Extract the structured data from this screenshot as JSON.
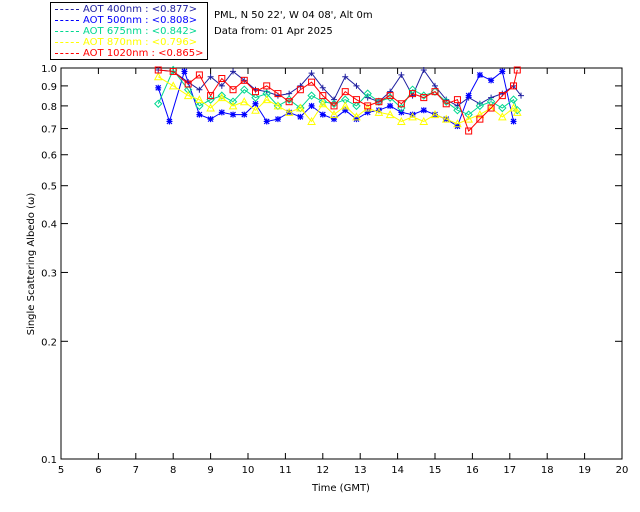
{
  "header": {
    "site_line": "PML, N 50 22', W 04 08', Alt 0m",
    "date_line": "Data from: 01 Apr 2025"
  },
  "legend": [
    {
      "label": "AOT  400nm : <0.877>",
      "color": "#2020a0"
    },
    {
      "label": "AOT  500nm : <0.808>",
      "color": "#0000ff"
    },
    {
      "label": "AOT  675nm : <0.842>",
      "color": "#00d890"
    },
    {
      "label": "AOT  870nm : <0.796>",
      "color": "#ffff00"
    },
    {
      "label": "AOT 1020nm : <0.865>",
      "color": "#ff0000"
    }
  ],
  "chart_data": {
    "type": "line",
    "xlabel": "Time (GMT)",
    "ylabel": "Single Scattering Albedo (ω)",
    "xlim": [
      5,
      20
    ],
    "ylim": [
      0.1,
      1.0
    ],
    "yscale": "log",
    "xticks": [
      5,
      6,
      7,
      8,
      9,
      10,
      11,
      12,
      13,
      14,
      15,
      16,
      17,
      18,
      19,
      20
    ],
    "yticks": [
      0.1,
      0.2,
      0.3,
      0.4,
      0.5,
      0.6,
      0.7,
      0.8,
      0.9,
      1.0
    ],
    "ytick_labels": [
      "0.1",
      "0.2",
      "0.3",
      "0.4",
      "0.5",
      "0.6",
      "0.7",
      "0.8",
      "0.9",
      "1.0"
    ],
    "series": [
      {
        "name": "AOT  400nm : <0.877>",
        "color": "#2020a0",
        "marker": "plus",
        "x": [
          7.6,
          8.0,
          8.4,
          8.7,
          9.0,
          9.3,
          9.6,
          9.9,
          10.2,
          10.5,
          10.8,
          11.1,
          11.4,
          11.7,
          12.0,
          12.3,
          12.6,
          12.9,
          13.2,
          13.5,
          13.8,
          14.1,
          14.4,
          14.7,
          15.0,
          15.3,
          15.6,
          15.9,
          16.2,
          16.5,
          16.8,
          17.1,
          17.3
        ],
        "y": [
          0.99,
          0.98,
          0.92,
          0.88,
          0.95,
          0.9,
          0.98,
          0.93,
          0.88,
          0.87,
          0.85,
          0.86,
          0.9,
          0.97,
          0.89,
          0.83,
          0.95,
          0.9,
          0.84,
          0.82,
          0.87,
          0.96,
          0.85,
          0.99,
          0.9,
          0.83,
          0.8,
          0.84,
          0.81,
          0.84,
          0.86,
          0.9,
          0.85
        ]
      },
      {
        "name": "AOT  500nm : <0.808>",
        "color": "#0000ff",
        "marker": "star",
        "x": [
          7.6,
          7.9,
          8.3,
          8.7,
          9.0,
          9.3,
          9.6,
          9.9,
          10.2,
          10.5,
          10.8,
          11.1,
          11.4,
          11.7,
          12.0,
          12.3,
          12.6,
          12.9,
          13.2,
          13.5,
          13.8,
          14.1,
          14.4,
          14.7,
          15.0,
          15.3,
          15.6,
          15.9,
          16.2,
          16.5,
          16.8,
          17.1
        ],
        "y": [
          0.89,
          0.73,
          0.98,
          0.76,
          0.74,
          0.77,
          0.76,
          0.76,
          0.81,
          0.73,
          0.74,
          0.77,
          0.75,
          0.8,
          0.76,
          0.74,
          0.78,
          0.74,
          0.77,
          0.78,
          0.8,
          0.77,
          0.76,
          0.78,
          0.76,
          0.74,
          0.71,
          0.85,
          0.96,
          0.93,
          0.98,
          0.73
        ]
      },
      {
        "name": "AOT  675nm : <0.842>",
        "color": "#00d890",
        "marker": "diamond",
        "x": [
          7.6,
          8.0,
          8.4,
          8.7,
          9.0,
          9.3,
          9.6,
          9.9,
          10.2,
          10.5,
          10.8,
          11.1,
          11.4,
          11.7,
          12.0,
          12.3,
          12.6,
          12.9,
          13.2,
          13.5,
          13.8,
          14.1,
          14.4,
          14.7,
          15.0,
          15.3,
          15.6,
          15.9,
          16.2,
          16.5,
          16.8,
          17.1,
          17.2
        ],
        "y": [
          0.81,
          0.99,
          0.88,
          0.8,
          0.83,
          0.85,
          0.82,
          0.88,
          0.84,
          0.86,
          0.8,
          0.83,
          0.79,
          0.85,
          0.82,
          0.81,
          0.83,
          0.8,
          0.86,
          0.82,
          0.84,
          0.79,
          0.88,
          0.85,
          0.87,
          0.82,
          0.78,
          0.76,
          0.8,
          0.82,
          0.79,
          0.83,
          0.78
        ]
      },
      {
        "name": "AOT  870nm : <0.796>",
        "color": "#ffff00",
        "marker": "triangle",
        "x": [
          7.6,
          8.0,
          8.4,
          8.7,
          9.0,
          9.3,
          9.6,
          9.9,
          10.2,
          10.5,
          10.8,
          11.1,
          11.4,
          11.7,
          12.0,
          12.3,
          12.6,
          12.9,
          13.2,
          13.5,
          13.8,
          14.1,
          14.4,
          14.7,
          15.0,
          15.3,
          15.6,
          15.9,
          16.2,
          16.5,
          16.8,
          17.1,
          17.2
        ],
        "y": [
          0.95,
          0.9,
          0.85,
          0.83,
          0.79,
          0.84,
          0.8,
          0.82,
          0.78,
          0.83,
          0.8,
          0.77,
          0.79,
          0.73,
          0.81,
          0.76,
          0.8,
          0.75,
          0.79,
          0.77,
          0.76,
          0.73,
          0.75,
          0.73,
          0.76,
          0.74,
          0.72,
          0.74,
          0.76,
          0.79,
          0.75,
          0.79,
          0.77
        ]
      },
      {
        "name": "AOT 1020nm : <0.865>",
        "color": "#ff0000",
        "marker": "square",
        "x": [
          7.6,
          8.0,
          8.4,
          8.7,
          9.0,
          9.3,
          9.6,
          9.9,
          10.2,
          10.5,
          10.8,
          11.1,
          11.4,
          11.7,
          12.0,
          12.3,
          12.6,
          12.9,
          13.2,
          13.5,
          13.8,
          14.1,
          14.4,
          14.7,
          15.0,
          15.3,
          15.6,
          15.9,
          16.2,
          16.5,
          16.8,
          17.1,
          17.2
        ],
        "y": [
          0.99,
          0.98,
          0.91,
          0.96,
          0.85,
          0.94,
          0.88,
          0.93,
          0.87,
          0.9,
          0.86,
          0.82,
          0.88,
          0.92,
          0.85,
          0.8,
          0.87,
          0.83,
          0.8,
          0.82,
          0.85,
          0.81,
          0.86,
          0.84,
          0.87,
          0.81,
          0.83,
          0.69,
          0.74,
          0.79,
          0.85,
          0.9,
          0.99
        ]
      }
    ]
  }
}
